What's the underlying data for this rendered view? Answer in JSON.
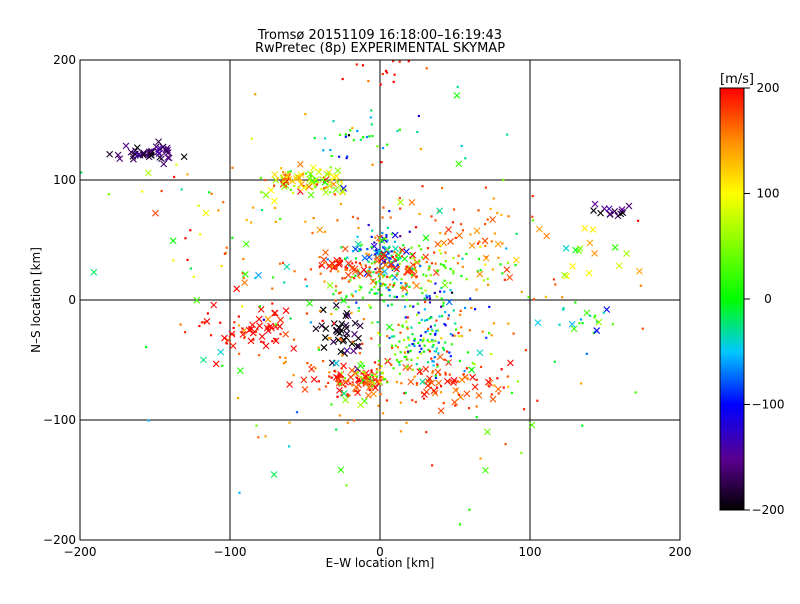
{
  "chart_data": {
    "type": "scatter",
    "title": "Tromsø 20151109 16:18:00–16:19:43",
    "subtitle": "RwPretec (8p) EXPERIMENTAL SKYMAP",
    "xlabel": "E–W location [km]",
    "ylabel": "N–S location [km]",
    "xlim": [
      -200,
      200
    ],
    "ylim": [
      -200,
      200
    ],
    "xticks": [
      -200,
      -100,
      0,
      100,
      200
    ],
    "yticks": [
      -200,
      -100,
      0,
      100,
      200
    ],
    "grid_lines": [
      -100,
      0,
      100
    ],
    "colorbar": {
      "label": "[m/s]",
      "range": [
        -200,
        200
      ],
      "ticks": [
        -200,
        -100,
        0,
        100,
        200
      ],
      "colormap": "rainbow: black-purple-blue-cyan-green-yellow-orange-red"
    },
    "marker_types": [
      "cross",
      "dot"
    ],
    "clusters": [
      {
        "x": -155,
        "y": 122,
        "sx": 12,
        "sy": 4,
        "n": 45,
        "v": -185,
        "marker": "cross"
      },
      {
        "x": -58,
        "y": 100,
        "sx": 10,
        "sy": 6,
        "n": 55,
        "v": 125,
        "marker": "mixed"
      },
      {
        "x": -40,
        "y": 100,
        "sx": 8,
        "sy": 6,
        "n": 40,
        "v": 80,
        "marker": "mixed"
      },
      {
        "x": -85,
        "y": -25,
        "sx": 15,
        "sy": 8,
        "n": 60,
        "v": 195,
        "marker": "mixed"
      },
      {
        "x": -20,
        "y": -67,
        "sx": 12,
        "sy": 6,
        "n": 90,
        "v": 190,
        "marker": "mixed"
      },
      {
        "x": -8,
        "y": -62,
        "sx": 8,
        "sy": 4,
        "n": 40,
        "v": 60,
        "marker": "dot"
      },
      {
        "x": 45,
        "y": -70,
        "sx": 22,
        "sy": 10,
        "n": 80,
        "v": 180,
        "marker": "mixed"
      },
      {
        "x": 0,
        "y": 40,
        "sx": 8,
        "sy": 10,
        "n": 70,
        "v": -60,
        "marker": "mixed"
      },
      {
        "x": 0,
        "y": 20,
        "sx": 15,
        "sy": 15,
        "n": 100,
        "v": 10,
        "marker": "dot"
      },
      {
        "x": -25,
        "y": 28,
        "sx": 8,
        "sy": 5,
        "n": 40,
        "v": 190,
        "marker": "mixed"
      },
      {
        "x": 15,
        "y": 28,
        "sx": 12,
        "sy": 8,
        "n": 50,
        "v": 180,
        "marker": "mixed"
      },
      {
        "x": 35,
        "y": -25,
        "sx": 12,
        "sy": 18,
        "n": 80,
        "v": -60,
        "marker": "dot"
      },
      {
        "x": 25,
        "y": -40,
        "sx": 15,
        "sy": 12,
        "n": 70,
        "v": 20,
        "marker": "dot"
      },
      {
        "x": -25,
        "y": -30,
        "sx": 8,
        "sy": 10,
        "n": 40,
        "v": -200,
        "marker": "cross"
      },
      {
        "x": 45,
        "y": 25,
        "sx": 15,
        "sy": 10,
        "n": 50,
        "v": 30,
        "marker": "dot"
      },
      {
        "x": 0,
        "y": 200,
        "sx": 12,
        "sy": 10,
        "n": 30,
        "v": 195,
        "marker": "dot"
      },
      {
        "x": -10,
        "y": 135,
        "sx": 15,
        "sy": 10,
        "n": 30,
        "v": -30,
        "marker": "dot"
      },
      {
        "x": 140,
        "y": -12,
        "sx": 8,
        "sy": 8,
        "n": 20,
        "v": -10,
        "marker": "mixed"
      },
      {
        "x": 155,
        "y": 74,
        "sx": 10,
        "sy": 4,
        "n": 14,
        "v": -185,
        "marker": "cross"
      },
      {
        "x": 145,
        "y": 42,
        "sx": 15,
        "sy": 10,
        "n": 14,
        "v": 100,
        "marker": "cross"
      },
      {
        "x": 60,
        "y": 55,
        "sx": 25,
        "sy": 20,
        "n": 45,
        "v": 160,
        "marker": "mixed"
      },
      {
        "x": -110,
        "y": 55,
        "sx": 25,
        "sy": 40,
        "n": 25,
        "v": 150,
        "marker": "mixed"
      },
      {
        "x": 0,
        "y": 0,
        "sx": 60,
        "sy": 60,
        "n": 200,
        "v": 160,
        "marker": "dot"
      },
      {
        "x": 0,
        "y": -10,
        "sx": 90,
        "sy": 90,
        "n": 120,
        "v": 0,
        "marker": "mixed"
      }
    ]
  }
}
